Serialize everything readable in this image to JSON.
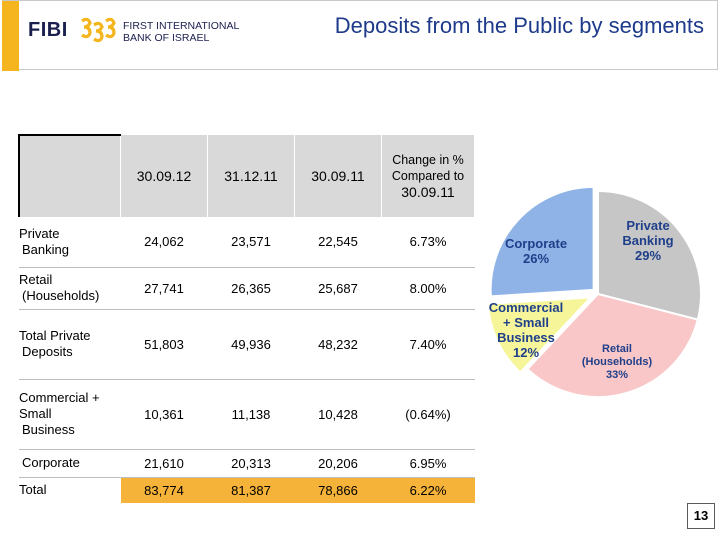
{
  "header": {
    "logo_text": "FIBI",
    "bank_name_line1": "FIRST INTERNATIONAL",
    "bank_name_line2": "BANK OF ISRAEL",
    "title": "Deposits from the Public by segments"
  },
  "table": {
    "col_headers": [
      "30.09.12",
      "31.12.11",
      "30.09.11"
    ],
    "change_header_line1": "Change in %",
    "change_header_line2": "Compared to",
    "change_header_line3": "30.09.11",
    "rows": [
      {
        "label_lines": [
          "Private",
          "Banking"
        ],
        "v1": "24,062",
        "v2": "23,571",
        "v3": "22,545",
        "chg": "6.73%"
      },
      {
        "label_lines": [
          "Retail",
          "(Households)"
        ],
        "v1": "27,741",
        "v2": "26,365",
        "v3": "25,687",
        "chg": "8.00%"
      },
      {
        "label_lines": [
          "Total Private",
          "Deposits"
        ],
        "v1": "51,803",
        "v2": "49,936",
        "v3": "48,232",
        "chg": "7.40%"
      },
      {
        "label_lines": [
          "Commercial +",
          "Small",
          "Business"
        ],
        "v1": "10,361",
        "v2": "11,138",
        "v3": "10,428",
        "chg": "(0.64%)"
      },
      {
        "label_lines": [
          "Corporate"
        ],
        "v1": "21,610",
        "v2": "20,313",
        "v3": "20,206",
        "chg": "6.95%"
      },
      {
        "label_lines": [
          "Total"
        ],
        "v1": "83,774",
        "v2": "81,387",
        "v3": "78,866",
        "chg": "6.22%"
      }
    ]
  },
  "pie": {
    "slices": [
      {
        "name_lines": [
          "Private",
          "Banking"
        ],
        "pct": 29,
        "pct_label": "29%",
        "color": "#c6c6c6",
        "label_color": "#1f3f8a"
      },
      {
        "name_lines": [
          "Retail",
          "(Households)"
        ],
        "pct": 33,
        "pct_label": "33%",
        "color": "#f9c7c7",
        "label_color": "#1f3f8a"
      },
      {
        "name_lines": [
          "Commercial",
          "+ Small",
          "Business"
        ],
        "pct": 12,
        "pct_label": "12%",
        "color": "#f6f59a",
        "label_color": "#1f3f8a"
      },
      {
        "name_lines": [
          "Corporate"
        ],
        "pct": 26,
        "pct_label": "26%",
        "color": "#8fb3e6",
        "label_color": "#1f3f8a"
      }
    ]
  },
  "page_number": "13",
  "colors": {
    "accent": "#f5b51e",
    "title": "#1e3a8a",
    "total_row": "#f6b33a"
  }
}
